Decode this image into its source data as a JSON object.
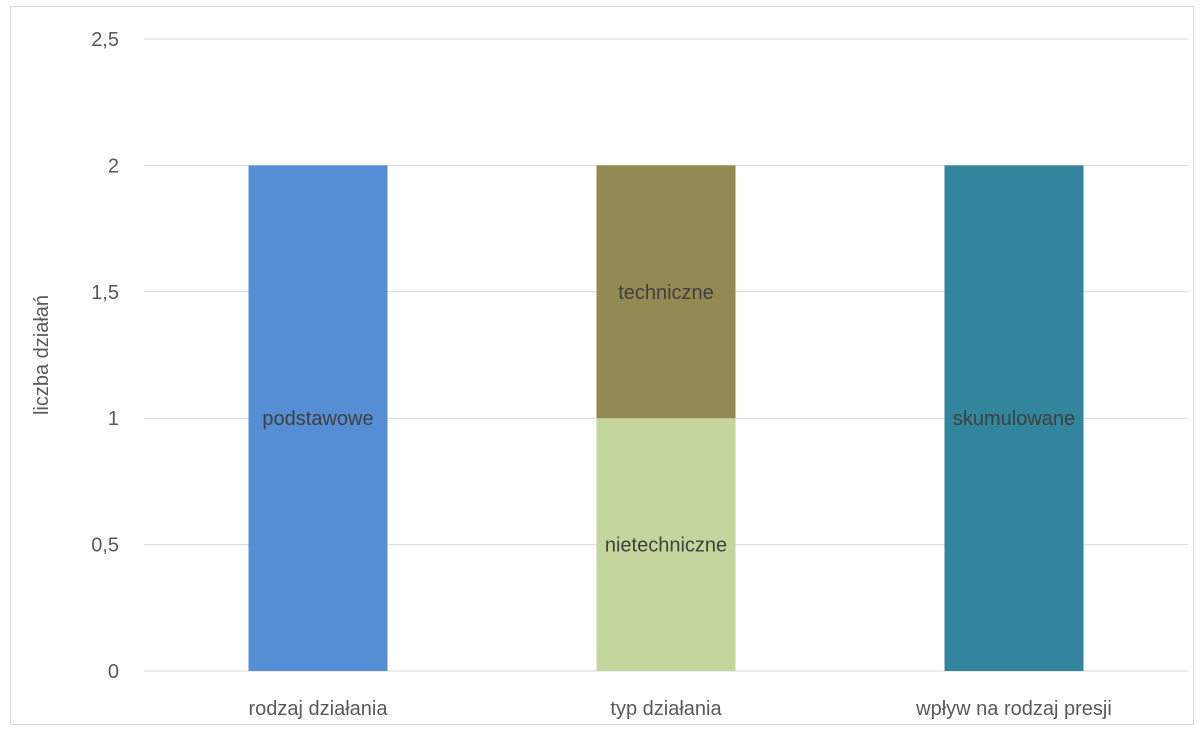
{
  "chart_data": {
    "type": "bar",
    "stacked": true,
    "title": "",
    "xlabel": "",
    "ylabel": "liczba działań",
    "ylim": [
      0,
      2.5
    ],
    "yticks": [
      "0",
      "0,5",
      "1",
      "1,5",
      "2",
      "2,5"
    ],
    "ytick_values": [
      0,
      0.5,
      1,
      1.5,
      2,
      2.5
    ],
    "grid": true,
    "categories": [
      "rodzaj działania",
      "typ działania",
      "wpływ na rodzaj presji"
    ],
    "segments": [
      {
        "category": "rodzaj działania",
        "label": "podstawowe",
        "value": 2,
        "base": 0,
        "color": "#558ed5"
      },
      {
        "category": "typ działania",
        "label": "nietechniczne",
        "value": 1,
        "base": 0,
        "color": "#c3d69b"
      },
      {
        "category": "typ działania",
        "label": "techniczne",
        "value": 1,
        "base": 1,
        "color": "#938953"
      },
      {
        "category": "wpływ na rodzaj presji",
        "label": "skumulowane",
        "value": 2,
        "base": 0,
        "color": "#31859c"
      }
    ]
  }
}
